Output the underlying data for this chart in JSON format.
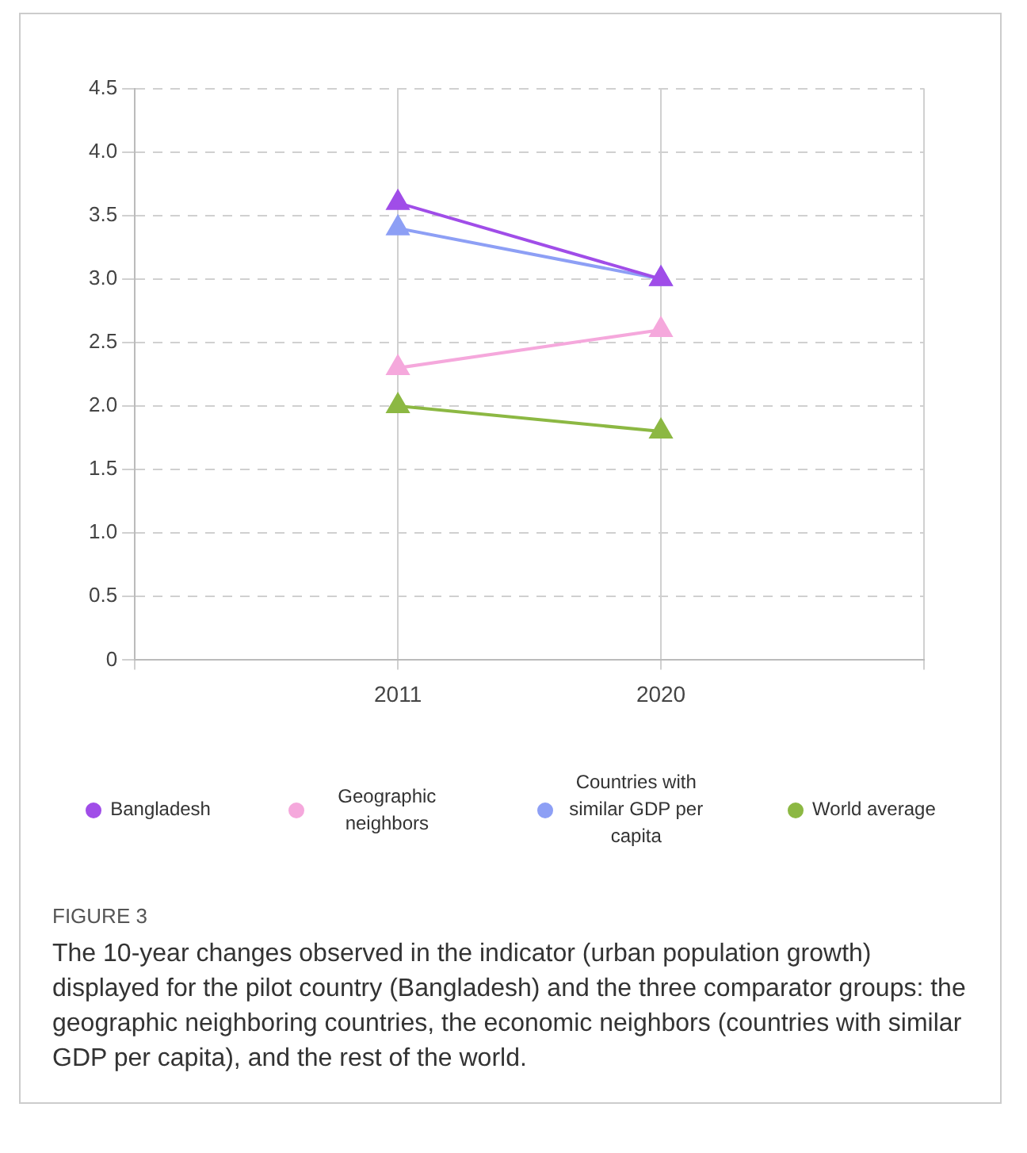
{
  "chart_data": {
    "type": "line",
    "categories": [
      null,
      "2011",
      "2020",
      null
    ],
    "series": [
      {
        "name": "Bangladesh",
        "color": "#a04de8",
        "values": [
          null,
          3.6,
          3.0,
          null
        ]
      },
      {
        "name": "Geographic neighbors",
        "color": "#f5a8dc",
        "values": [
          null,
          2.3,
          2.6,
          null
        ]
      },
      {
        "name": "Countries with similar GDP per capita",
        "color": "#8d9ff5",
        "values": [
          null,
          3.4,
          3.0,
          null
        ]
      },
      {
        "name": "World average",
        "color": "#8cb843",
        "values": [
          null,
          2.0,
          1.8,
          null
        ]
      }
    ],
    "ylim": [
      0,
      4.5
    ],
    "yticks": [
      0,
      0.5,
      {
        "value": 1,
        "label": "1.0"
      },
      1.5,
      {
        "value": 2,
        "label": "2.0"
      },
      2.5,
      {
        "value": 3,
        "label": "3.0"
      },
      3.5,
      {
        "value": 4,
        "label": "4.0"
      },
      4.5
    ],
    "grid": true,
    "legend": "bottom",
    "marker": "triangle",
    "line_style": "solid",
    "annotations": [
      "FIGURE 3",
      "The 10-year changes observed in the indicator (urban population growth) displayed for the pilot country (Bangladesh) and the three comparator groups: the geographic neighboring countries, the economic neighbors (countries with similar GDP per capita), and the rest of the world."
    ]
  }
}
